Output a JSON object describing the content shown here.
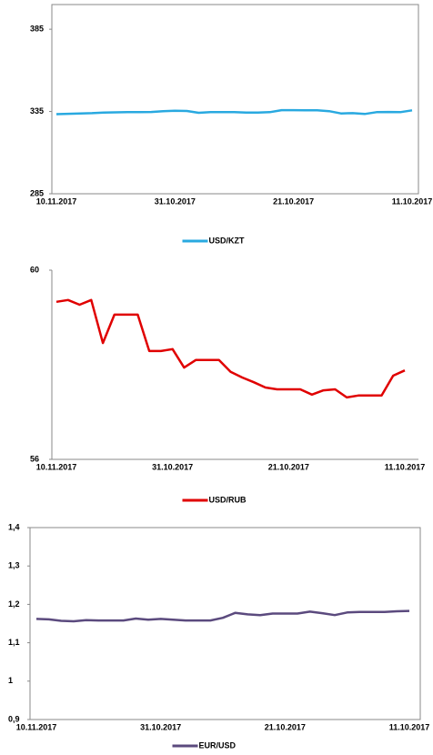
{
  "chart_data": [
    {
      "type": "line",
      "legend": "bottom",
      "frame": true,
      "categories": [
        "10.11.2017",
        null,
        null,
        null,
        null,
        null,
        null,
        null,
        null,
        null,
        "31.10.2017",
        null,
        null,
        null,
        null,
        null,
        null,
        null,
        null,
        null,
        "21.10.2017",
        null,
        null,
        null,
        null,
        null,
        null,
        null,
        null,
        null,
        "11.10.2017"
      ],
      "series": [
        {
          "name": "USD/KZT",
          "color": "#29a9e0",
          "values": [
            333.4,
            333.6,
            333.8,
            334.0,
            334.3,
            334.5,
            334.6,
            334.6,
            334.7,
            335.2,
            335.4,
            335.3,
            334.2,
            334.6,
            334.6,
            334.6,
            334.4,
            334.3,
            334.6,
            335.8,
            335.8,
            335.7,
            335.7,
            335.2,
            333.8,
            334.0,
            333.5,
            334.6,
            334.7,
            334.6,
            335.7
          ]
        }
      ],
      "ylim": [
        285,
        400
      ],
      "yticks": [
        285,
        335,
        385
      ]
    },
    {
      "type": "line",
      "legend": "bottom",
      "frame": false,
      "categories": [
        "10.11.2017",
        null,
        null,
        null,
        null,
        null,
        null,
        null,
        null,
        null,
        "31.10.2017",
        null,
        null,
        null,
        null,
        null,
        null,
        null,
        null,
        null,
        "21.10.2017",
        null,
        null,
        null,
        null,
        null,
        null,
        null,
        null,
        null,
        "11.10.2017"
      ],
      "series": [
        {
          "name": "USD/RUB",
          "color": "#e00000",
          "values": [
            59.33,
            59.37,
            59.27,
            59.37,
            58.46,
            59.06,
            59.06,
            59.06,
            58.29,
            58.29,
            58.33,
            57.94,
            58.1,
            58.1,
            58.1,
            57.85,
            57.73,
            57.63,
            57.52,
            57.48,
            57.48,
            57.48,
            57.37,
            57.46,
            57.48,
            57.31,
            57.35,
            57.35,
            57.35,
            57.77,
            57.88
          ]
        }
      ],
      "ylim": [
        56,
        60
      ],
      "yticks": [
        56,
        60
      ]
    },
    {
      "type": "line",
      "legend": "bottom",
      "frame": true,
      "categories": [
        "10.11.2017",
        null,
        null,
        null,
        null,
        null,
        null,
        null,
        null,
        null,
        "31.10.2017",
        null,
        null,
        null,
        null,
        null,
        null,
        null,
        null,
        null,
        "21.10.2017",
        null,
        null,
        null,
        null,
        null,
        null,
        null,
        null,
        null,
        "11.10.2017"
      ],
      "series": [
        {
          "name": "EUR/USD",
          "color": "#5b4a7e",
          "values": [
            1.162,
            1.161,
            1.157,
            1.156,
            1.159,
            1.158,
            1.158,
            1.158,
            1.163,
            1.16,
            1.162,
            1.16,
            1.158,
            1.158,
            1.158,
            1.165,
            1.178,
            1.174,
            1.172,
            1.176,
            1.176,
            1.176,
            1.181,
            1.177,
            1.172,
            1.179,
            1.18,
            1.18,
            1.18,
            1.182,
            1.183
          ]
        }
      ],
      "ylim": [
        0.9,
        1.4
      ],
      "yticks": [
        {
          "value": 0.9,
          "label": "0,9"
        },
        1,
        {
          "value": 1.1,
          "label": "1,1"
        },
        {
          "value": 1.2,
          "label": "1,2"
        },
        {
          "value": 1.3,
          "label": "1,3"
        },
        {
          "value": 1.4,
          "label": "1,4"
        }
      ]
    }
  ]
}
